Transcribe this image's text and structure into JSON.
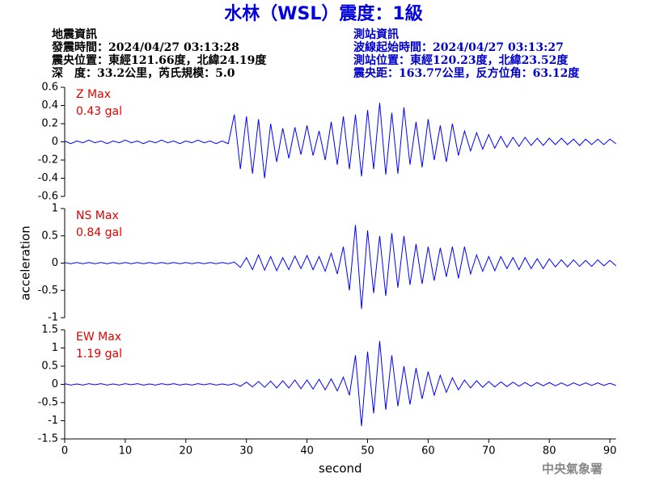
{
  "header": {
    "title": "水林（WSL）震度：1級",
    "left": [
      "地震資訊",
      "發震時間：2024/04/27 03:13:28",
      "震央位置：東經121.66度，北緯24.19度",
      "深　度：33.2公里，芮氏規模：5.0"
    ],
    "right": [
      "測站資訊",
      "波線起始時間：2024/04/27 03:13:27",
      "測站位置：東經120.23度，北緯23.52度",
      "震央距：163.77公里，反方位角：63.12度"
    ],
    "footer": "中央氣象署"
  },
  "chart_data": [
    {
      "type": "line",
      "label": "Z Max",
      "peak_label": "0.43 gal",
      "x": [
        0,
        1,
        2,
        3,
        4,
        5,
        6,
        7,
        8,
        9,
        10,
        11,
        12,
        13,
        14,
        15,
        16,
        17,
        18,
        19,
        20,
        21,
        22,
        23,
        24,
        25,
        26,
        27,
        28,
        29,
        30,
        31,
        32,
        33,
        34,
        35,
        36,
        37,
        38,
        39,
        40,
        41,
        42,
        43,
        44,
        45,
        46,
        47,
        48,
        49,
        50,
        51,
        52,
        53,
        54,
        55,
        56,
        57,
        58,
        59,
        60,
        61,
        62,
        63,
        64,
        65,
        66,
        67,
        68,
        69,
        70,
        71,
        72,
        73,
        74,
        75,
        76,
        77,
        78,
        79,
        80,
        81,
        82,
        83,
        84,
        85,
        86,
        87,
        88,
        89,
        90,
        91
      ],
      "series": [
        {
          "color": "#0000ff",
          "values": [
            0.01,
            -0.02,
            0.01,
            -0.01,
            0.02,
            -0.01,
            0.01,
            -0.02,
            0.01,
            -0.01,
            0.02,
            -0.01,
            0.01,
            -0.02,
            0.01,
            -0.01,
            0.02,
            -0.01,
            0.01,
            -0.02,
            0.01,
            -0.01,
            0.02,
            -0.01,
            0.01,
            -0.02,
            0.01,
            -0.02,
            0.3,
            -0.3,
            0.28,
            -0.35,
            0.25,
            -0.4,
            0.2,
            -0.22,
            0.15,
            -0.18,
            0.16,
            -0.14,
            0.18,
            -0.15,
            0.12,
            -0.2,
            0.22,
            -0.25,
            0.28,
            -0.3,
            0.3,
            -0.38,
            0.35,
            -0.3,
            0.43,
            -0.36,
            0.32,
            -0.35,
            0.38,
            -0.25,
            0.22,
            -0.28,
            0.25,
            -0.2,
            0.18,
            -0.22,
            0.2,
            -0.15,
            0.12,
            -0.1,
            0.1,
            -0.08,
            0.08,
            -0.07,
            0.06,
            -0.06,
            0.05,
            -0.05,
            0.05,
            -0.04,
            0.04,
            -0.04,
            0.04,
            -0.03,
            0.04,
            -0.03,
            0.03,
            -0.04,
            0.03,
            -0.03,
            0.03,
            -0.03,
            0.03,
            -0.02
          ]
        }
      ],
      "xlim": [
        0,
        91
      ],
      "ylim": [
        -0.6,
        0.6
      ],
      "yticks": [
        0.6,
        0.4,
        0.2,
        0,
        -0.2,
        -0.4,
        -0.6
      ]
    },
    {
      "type": "line",
      "label": "NS Max",
      "peak_label": "0.84 gal",
      "ylabel": "acceleration",
      "x": [
        0,
        1,
        2,
        3,
        4,
        5,
        6,
        7,
        8,
        9,
        10,
        11,
        12,
        13,
        14,
        15,
        16,
        17,
        18,
        19,
        20,
        21,
        22,
        23,
        24,
        25,
        26,
        27,
        28,
        29,
        30,
        31,
        32,
        33,
        34,
        35,
        36,
        37,
        38,
        39,
        40,
        41,
        42,
        43,
        44,
        45,
        46,
        47,
        48,
        49,
        50,
        51,
        52,
        53,
        54,
        55,
        56,
        57,
        58,
        59,
        60,
        61,
        62,
        63,
        64,
        65,
        66,
        67,
        68,
        69,
        70,
        71,
        72,
        73,
        74,
        75,
        76,
        77,
        78,
        79,
        80,
        81,
        82,
        83,
        84,
        85,
        86,
        87,
        88,
        89,
        90,
        91
      ],
      "series": [
        {
          "color": "#0000ff",
          "values": [
            0.01,
            -0.01,
            0.01,
            -0.01,
            0.01,
            -0.01,
            0.01,
            -0.01,
            0.01,
            -0.01,
            0.01,
            -0.01,
            0.01,
            -0.01,
            0.01,
            -0.01,
            0.01,
            -0.01,
            0.01,
            -0.01,
            0.01,
            -0.01,
            0.01,
            -0.01,
            0.01,
            -0.01,
            0.01,
            -0.01,
            0.02,
            -0.08,
            0.1,
            -0.12,
            0.15,
            -0.13,
            0.12,
            -0.14,
            0.1,
            -0.12,
            0.13,
            -0.1,
            0.14,
            -0.12,
            0.12,
            -0.15,
            0.18,
            -0.2,
            0.3,
            -0.5,
            0.7,
            -0.84,
            0.6,
            -0.55,
            0.5,
            -0.6,
            0.55,
            -0.45,
            0.5,
            -0.4,
            0.35,
            -0.38,
            0.3,
            -0.32,
            0.28,
            -0.25,
            0.3,
            -0.28,
            0.3,
            -0.2,
            0.15,
            -0.15,
            0.12,
            -0.14,
            0.12,
            -0.1,
            0.1,
            -0.12,
            0.1,
            -0.1,
            0.08,
            -0.1,
            0.08,
            -0.07,
            0.06,
            -0.07,
            0.06,
            -0.06,
            0.05,
            -0.06,
            0.06,
            -0.05,
            0.05,
            -0.05
          ]
        }
      ],
      "xlim": [
        0,
        91
      ],
      "ylim": [
        -1,
        1
      ],
      "yticks": [
        1,
        0.5,
        0,
        -0.5,
        -1
      ]
    },
    {
      "type": "line",
      "label": "EW Max",
      "peak_label": "1.19 gal",
      "xlabel": "second",
      "x": [
        0,
        1,
        2,
        3,
        4,
        5,
        6,
        7,
        8,
        9,
        10,
        11,
        12,
        13,
        14,
        15,
        16,
        17,
        18,
        19,
        20,
        21,
        22,
        23,
        24,
        25,
        26,
        27,
        28,
        29,
        30,
        31,
        32,
        33,
        34,
        35,
        36,
        37,
        38,
        39,
        40,
        41,
        42,
        43,
        44,
        45,
        46,
        47,
        48,
        49,
        50,
        51,
        52,
        53,
        54,
        55,
        56,
        57,
        58,
        59,
        60,
        61,
        62,
        63,
        64,
        65,
        66,
        67,
        68,
        69,
        70,
        71,
        72,
        73,
        74,
        75,
        76,
        77,
        78,
        79,
        80,
        81,
        82,
        83,
        84,
        85,
        86,
        87,
        88,
        89,
        90,
        91
      ],
      "series": [
        {
          "color": "#0000ff",
          "values": [
            0.02,
            -0.02,
            0.01,
            -0.02,
            0.02,
            -0.01,
            0.02,
            -0.02,
            0.01,
            -0.02,
            0.02,
            -0.01,
            0.02,
            -0.02,
            0.01,
            -0.02,
            0.02,
            -0.01,
            0.02,
            -0.02,
            0.01,
            -0.02,
            0.02,
            -0.01,
            0.02,
            -0.02,
            0.01,
            -0.02,
            0.02,
            -0.05,
            0.06,
            -0.07,
            0.08,
            -0.08,
            0.09,
            -0.1,
            0.1,
            -0.1,
            0.12,
            -0.12,
            0.12,
            -0.13,
            0.14,
            -0.15,
            0.15,
            -0.18,
            0.2,
            -0.3,
            0.8,
            -1.15,
            0.9,
            -0.8,
            1.19,
            -0.7,
            0.8,
            -0.6,
            0.5,
            -0.55,
            0.45,
            -0.4,
            0.35,
            -0.3,
            0.25,
            -0.22,
            0.18,
            -0.15,
            0.12,
            -0.1,
            0.1,
            -0.08,
            0.08,
            -0.07,
            0.07,
            -0.06,
            0.06,
            -0.05,
            0.05,
            -0.05,
            0.05,
            -0.04,
            0.05,
            -0.04,
            0.04,
            -0.04,
            0.04,
            -0.03,
            0.04,
            -0.03,
            0.04,
            -0.03,
            0.03,
            -0.03
          ]
        }
      ],
      "xlim": [
        0,
        91
      ],
      "ylim": [
        -1.5,
        1.5
      ],
      "yticks": [
        1.5,
        1,
        0.5,
        0,
        -0.5,
        -1,
        -1.5
      ],
      "xticks": [
        0,
        10,
        20,
        30,
        40,
        50,
        60,
        70,
        80,
        90
      ]
    }
  ]
}
